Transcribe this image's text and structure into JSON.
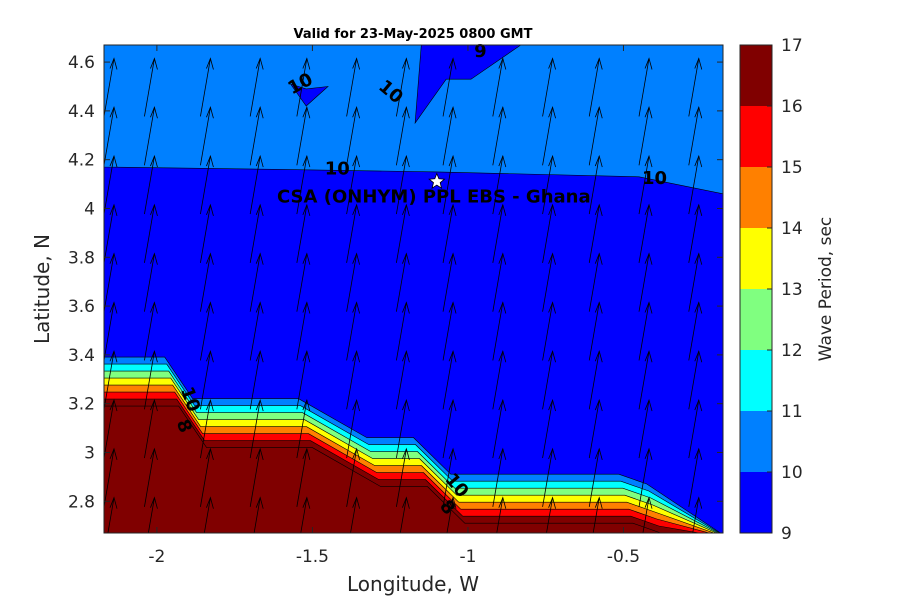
{
  "chart_data": {
    "type": "contour",
    "title": "Valid for 23-May-2025 0800 GMT",
    "xlabel": "Longitude, W",
    "ylabel": "Latitude, N",
    "xlim": [
      -2.17,
      -0.18
    ],
    "ylim": [
      2.67,
      4.67
    ],
    "xticks": [
      -2,
      -1.5,
      -1,
      -0.5
    ],
    "xtick_labels": [
      "-2",
      "-1.5",
      "-1",
      "-0.5"
    ],
    "yticks": [
      2.8,
      3,
      3.2,
      3.4,
      3.6,
      3.8,
      4,
      4.2,
      4.4,
      4.6
    ],
    "ytick_labels": [
      "2.8",
      "3",
      "3.2",
      "3.4",
      "3.6",
      "3.8",
      "4",
      "4.2",
      "4.4",
      "4.6"
    ],
    "colorbar": {
      "label": "Wave Period, sec",
      "levels": [
        9,
        10,
        11,
        12,
        13,
        14,
        15,
        16,
        17
      ],
      "tick_labels": [
        "9",
        "10",
        "11",
        "12",
        "13",
        "14",
        "15",
        "16",
        "17"
      ],
      "colors": [
        "#0000ff",
        "#0080ff",
        "#00ffff",
        "#80ff80",
        "#ffff00",
        "#ff8000",
        "#ff0000",
        "#800000"
      ]
    },
    "regions": [
      {
        "band": "10-11",
        "color": "#0080ff",
        "polygon": [
          [
            -2.17,
            4.67
          ],
          [
            -0.18,
            4.67
          ],
          [
            -0.18,
            4.06
          ],
          [
            -0.45,
            4.13
          ],
          [
            -1.1,
            4.15
          ],
          [
            -1.6,
            4.16
          ],
          [
            -2.17,
            4.17
          ]
        ]
      },
      {
        "band": "9-10",
        "color": "#0000ff",
        "polygon": [
          [
            -1.15,
            4.67
          ],
          [
            -0.83,
            4.67
          ],
          [
            -0.99,
            4.53
          ],
          [
            -1.07,
            4.53
          ],
          [
            -1.17,
            4.35
          ]
        ]
      },
      {
        "band": "9-10",
        "color": "#0000ff",
        "polygon": [
          [
            -1.57,
            4.51
          ],
          [
            -1.52,
            4.49
          ],
          [
            -1.45,
            4.5
          ],
          [
            -1.52,
            4.42
          ]
        ]
      }
    ],
    "land_boundary": [
      [
        -2.17,
        3.19
      ],
      [
        -1.93,
        3.19
      ],
      [
        -1.84,
        3.02
      ],
      [
        -1.5,
        3.02
      ],
      [
        -1.28,
        2.86
      ],
      [
        -1.13,
        2.86
      ],
      [
        -1.01,
        2.71
      ],
      [
        -0.47,
        2.71
      ],
      [
        -0.38,
        2.67
      ]
    ],
    "land_color": "#800000",
    "contour_labels": [
      {
        "text": "10",
        "lon": -1.53,
        "lat": 4.49,
        "angle": -28
      },
      {
        "text": "10",
        "lon": -1.26,
        "lat": 4.46,
        "angle": 40
      },
      {
        "text": "9",
        "lon": -0.96,
        "lat": 4.62,
        "angle": 0
      },
      {
        "text": "10",
        "lon": -1.42,
        "lat": 4.14,
        "angle": 0
      },
      {
        "text": "10",
        "lon": -0.4,
        "lat": 4.1,
        "angle": 0
      },
      {
        "text": "10",
        "lon": -1.91,
        "lat": 3.21,
        "angle": 70
      },
      {
        "text": "8",
        "lon": -1.93,
        "lat": 3.1,
        "angle": 70
      },
      {
        "text": "10",
        "lon": -1.05,
        "lat": 2.85,
        "angle": 50
      },
      {
        "text": "8",
        "lon": -1.08,
        "lat": 2.76,
        "angle": 50
      }
    ],
    "site": {
      "name": "CSA (ONHYM) PPL EBS  - Ghana",
      "lon": -1.1,
      "lat": 4.11
    },
    "vectors": {
      "rows_lat": [
        2.7,
        2.9,
        3.1,
        3.3,
        3.5,
        3.7,
        3.9,
        4.1,
        4.3,
        4.5
      ],
      "cols_lon": [
        -2.17,
        -2.04,
        -1.86,
        -1.7,
        -1.55,
        -1.39,
        -1.23,
        -1.08,
        -0.92,
        -0.76,
        -0.61,
        -0.45,
        -0.29
      ],
      "direction": "NNE"
    }
  }
}
